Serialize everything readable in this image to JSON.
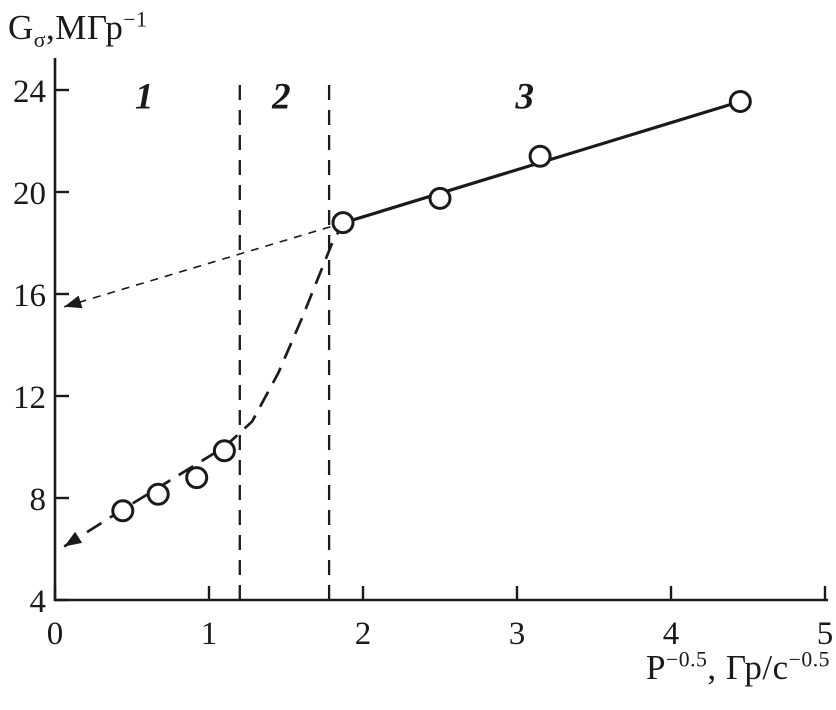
{
  "chart_data": {
    "type": "scatter",
    "title": "",
    "background": "#ffffff",
    "ink_color": "#1a1a1a",
    "xlim": [
      0,
      5
    ],
    "ylim": [
      4,
      24
    ],
    "grid": false,
    "legend": "none",
    "xticks": [
      "0",
      "1",
      "2",
      "3",
      "4",
      "5"
    ],
    "yticks": [
      "4",
      "8",
      "12",
      "16",
      "20",
      "24"
    ],
    "ylabel_parts": [
      {
        "t": "G"
      },
      {
        "t": "σ",
        "pos": "sub"
      },
      {
        "t": ",МГр"
      },
      {
        "t": "−1",
        "pos": "sup"
      }
    ],
    "xlabel_parts": [
      {
        "t": "P"
      },
      {
        "t": "−0.5",
        "pos": "sup"
      },
      {
        "t": ", Гр/с"
      },
      {
        "t": "−0.5",
        "pos": "sup"
      }
    ],
    "region_labels": [
      {
        "text": "1",
        "x": 0.58,
        "y": 23.75
      },
      {
        "text": "2",
        "x": 1.47,
        "y": 23.75
      },
      {
        "text": "3",
        "x": 3.05,
        "y": 23.75
      }
    ],
    "series": [
      {
        "name": "low-dose-rate-points",
        "marker": "open-circle",
        "points": [
          [
            0.44,
            7.5
          ],
          [
            0.67,
            8.15
          ],
          [
            0.92,
            8.8
          ],
          [
            1.1,
            9.85
          ]
        ]
      },
      {
        "name": "high-dose-rate-points",
        "marker": "open-circle",
        "points": [
          [
            1.87,
            18.8
          ],
          [
            2.5,
            19.75
          ],
          [
            3.15,
            21.4
          ],
          [
            4.45,
            23.55
          ]
        ]
      }
    ],
    "lines": [
      {
        "name": "upper-fit-solid",
        "style": "solid",
        "points": [
          [
            1.85,
            18.75
          ],
          [
            4.45,
            23.55
          ]
        ]
      },
      {
        "name": "upper-extrapolation-dashed",
        "style": "thin-dash",
        "arrow_start": true,
        "points": [
          [
            0.06,
            15.5
          ],
          [
            1.85,
            18.75
          ]
        ]
      },
      {
        "name": "lower-fit-and-transition-dashed",
        "style": "long-dash",
        "arrow_start": true,
        "points": [
          [
            0.06,
            6.1
          ],
          [
            0.44,
            7.55
          ],
          [
            1.1,
            10.0
          ],
          [
            1.28,
            11.0
          ],
          [
            1.45,
            12.9
          ],
          [
            1.6,
            15.0
          ],
          [
            1.72,
            16.8
          ],
          [
            1.8,
            18.0
          ],
          [
            1.87,
            18.75
          ]
        ]
      },
      {
        "name": "region-boundary-1",
        "style": "mid-dash",
        "points": [
          [
            1.2,
            4
          ],
          [
            1.2,
            24.2
          ]
        ]
      },
      {
        "name": "region-boundary-2",
        "style": "mid-dash",
        "points": [
          [
            1.78,
            4
          ],
          [
            1.78,
            24.2
          ]
        ]
      }
    ],
    "axis_intercepts_marked_by_arrows": [
      {
        "axis": "y",
        "value": 15.5
      },
      {
        "axis": "y",
        "value": 6.1
      }
    ]
  }
}
